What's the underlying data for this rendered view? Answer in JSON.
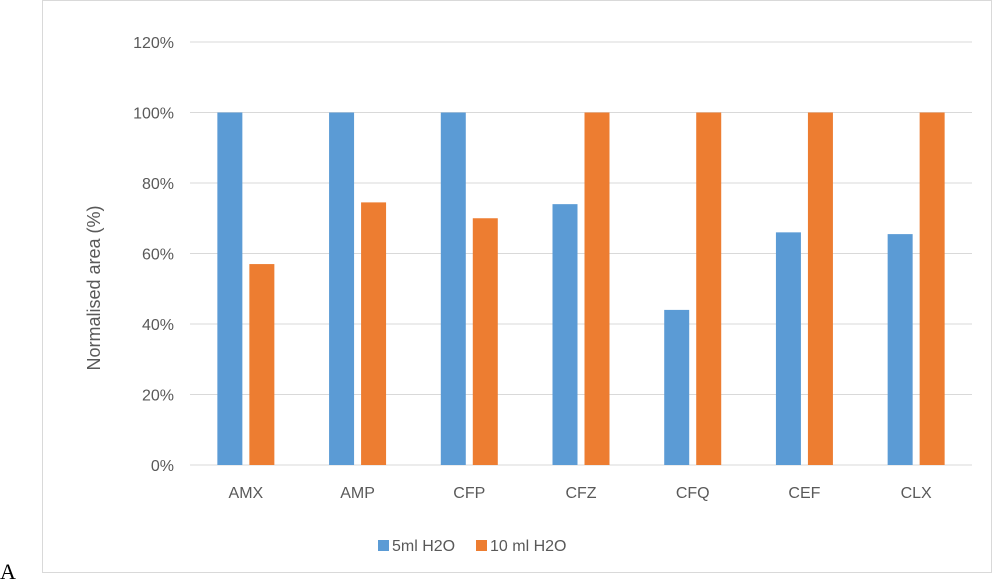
{
  "panel_label": "A",
  "colors": {
    "series_1": "#5b9bd5",
    "series_2": "#ed7d31",
    "grid": "#d9d9d9",
    "text": "#595959"
  },
  "chart_data": {
    "type": "bar",
    "title": "",
    "xlabel": "",
    "ylabel": "Normalised area (%)",
    "ylim": [
      0,
      120
    ],
    "y_ticks": [
      0,
      20,
      40,
      60,
      80,
      100,
      120
    ],
    "y_tick_labels": [
      "0%",
      "20%",
      "40%",
      "60%",
      "80%",
      "100%",
      "120%"
    ],
    "categories": [
      "AMX",
      "AMP",
      "CFP",
      "CFZ",
      "CFQ",
      "CEF",
      "CLX"
    ],
    "series": [
      {
        "name": "5ml H2O",
        "values": [
          100,
          100,
          100,
          74,
          44,
          66,
          65.5
        ]
      },
      {
        "name": "10 ml H2O",
        "values": [
          57,
          74.5,
          70,
          100,
          100,
          100,
          100
        ]
      }
    ],
    "grid": true,
    "legend_position": "bottom"
  }
}
